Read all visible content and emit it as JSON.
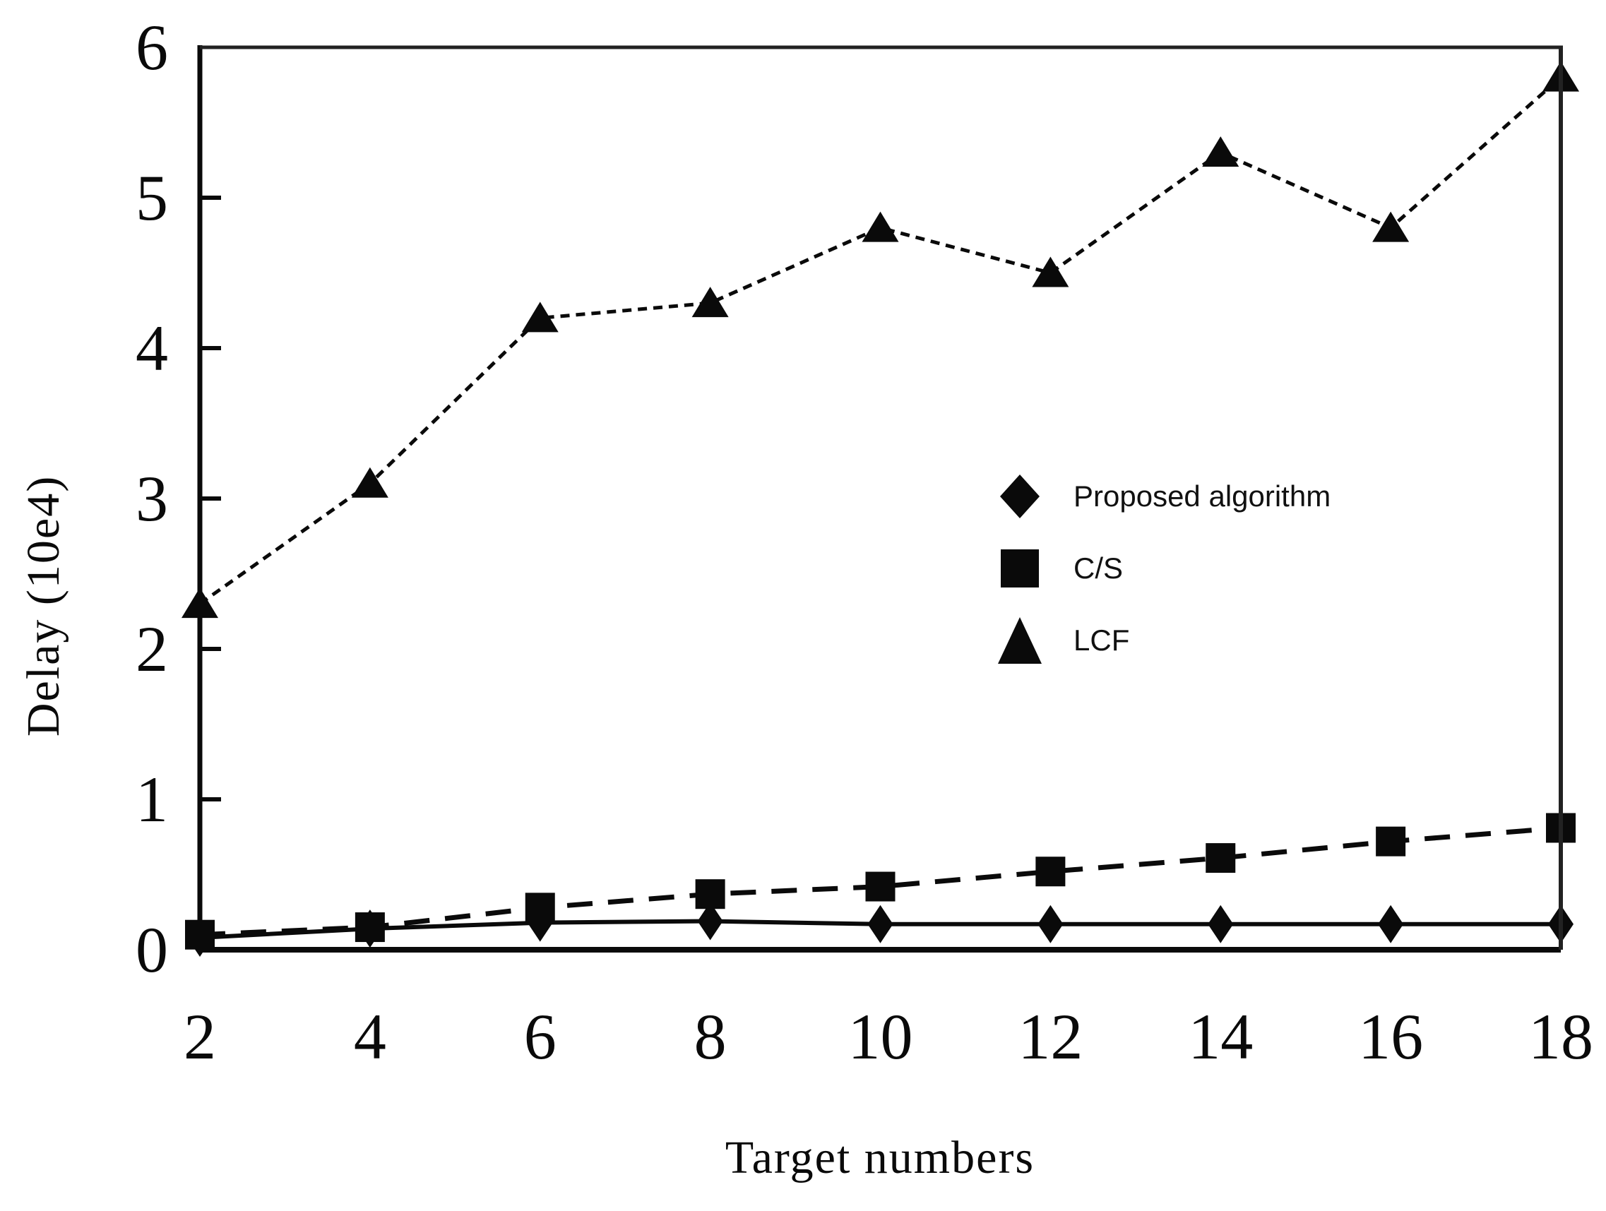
{
  "figure": {
    "background": "#ffffff",
    "ink": "#0a0a0a",
    "border_ink": "#222222"
  },
  "chart_data": {
    "type": "line",
    "title": "",
    "xlabel": "Target numbers",
    "ylabel": "Delay (10e4)",
    "x": [
      2,
      4,
      6,
      8,
      10,
      12,
      14,
      16,
      18
    ],
    "xlim": [
      2,
      18
    ],
    "ylim": [
      0,
      6
    ],
    "y_ticks": [
      0,
      1,
      2,
      3,
      4,
      5,
      6
    ],
    "grid": false,
    "legend_position": "center-right",
    "series": [
      {
        "name": "Proposed algorithm",
        "marker": "diamond",
        "line": "solid",
        "values": [
          0.08,
          0.14,
          0.18,
          0.19,
          0.17,
          0.17,
          0.17,
          0.17,
          0.17
        ]
      },
      {
        "name": "C/S",
        "marker": "square",
        "line": "dashed",
        "values": [
          0.1,
          0.15,
          0.28,
          0.37,
          0.42,
          0.52,
          0.61,
          0.72,
          0.81
        ]
      },
      {
        "name": "LCF",
        "marker": "triangle",
        "line": "dotted",
        "values": [
          2.3,
          3.1,
          4.2,
          4.3,
          4.8,
          4.5,
          5.3,
          4.8,
          5.8
        ]
      }
    ]
  }
}
